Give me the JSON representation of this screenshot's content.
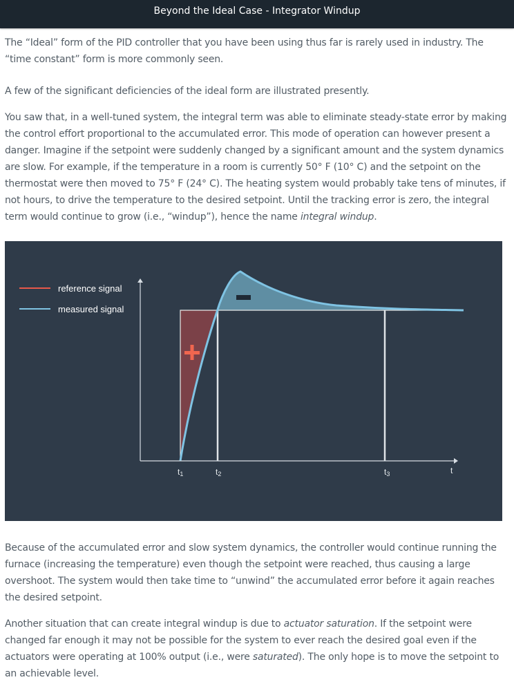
{
  "header": {
    "title": "Beyond the Ideal Case - Integrator Windup"
  },
  "paragraphs": {
    "p1": "The “Ideal” form of the PID controller that you have been using thus far is rarely used in industry. The “time constant” form is more commonly seen.",
    "p2": "A few of the significant deficiencies of the ideal form are illustrated presently.",
    "p3_main": "You saw that, in a well-tuned system, the integral term was able to eliminate steady-state error by making the control effort proportional to the accumulated error. This mode of operation can however present a danger. Imagine if the setpoint were suddenly changed by a significant amount and the system dynamics are slow. For example, if the temperature in a room is currently 50° F (10° C) and the setpoint on the thermostat were then moved to 75° F (24° C). The heating system would probably take tens of minutes, if not hours, to drive the temperature to the desired setpoint. Until the tracking error is zero, the integral term would continue to grow (i.e., “windup”), hence the name ",
    "p3_em": "integral windup",
    "p3_end": ".",
    "p4": "Because of the accumulated error and slow system dynamics, the controller would continue running the furnace (increasing the temperature) even though the setpoint were reached, thus causing a large overshoot. The system would then take time to “unwind” the accumulated error before it again reaches the desired setpoint.",
    "p5_a": "Another situation that can create integral windup is due to ",
    "p5_em1": "actuator saturation",
    "p5_b": ". If the setpoint were changed far enough it may not be possible for the system to ever reach the desired goal even if the actuators were operating at 100% output (i.e., were ",
    "p5_em2": "saturated",
    "p5_c": "). The only hope is to move the setpoint to an achievable level."
  },
  "figure": {
    "legend": [
      {
        "label": "reference signal",
        "color": "#e8584a"
      },
      {
        "label": "measured signal",
        "color": "#7fc3e3"
      }
    ],
    "time_labels": {
      "t1": "t1",
      "t2": "t2",
      "t3": "t3",
      "t": "t"
    },
    "plus_symbol": "+",
    "minus_symbol": "−",
    "colors": {
      "background": "#2f3b49",
      "axis": "#d7dde3",
      "positive_area": "#7b4148",
      "negative_area": "#5f8ea3"
    }
  }
}
